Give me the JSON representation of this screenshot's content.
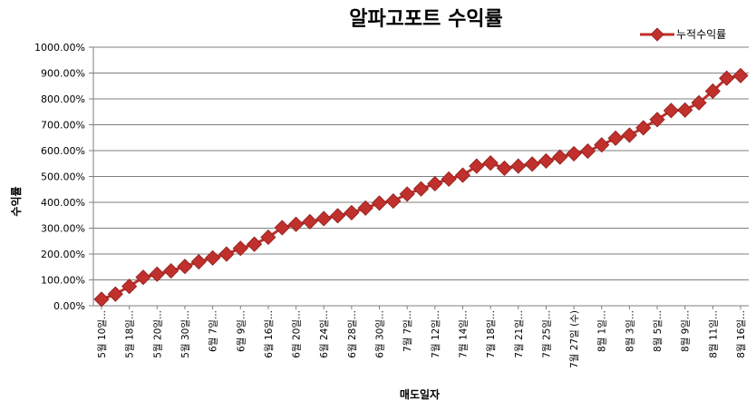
{
  "chart_data": {
    "type": "line",
    "title": "알파고포트 수익률",
    "xlabel": "매도일자",
    "ylabel": "수익률",
    "ylim": [
      0,
      1000
    ],
    "y_ticks": [
      "0.00%",
      "100.00%",
      "200.00%",
      "300.00%",
      "400.00%",
      "500.00%",
      "600.00%",
      "700.00%",
      "800.00%",
      "900.00%",
      "1000.00%"
    ],
    "grid": true,
    "legend_position": "top-right",
    "series": [
      {
        "name": "누적수익률",
        "color": "#c0302c",
        "marker": "diamond",
        "values": [
          25,
          45,
          75,
          110,
          122,
          135,
          152,
          170,
          185,
          200,
          222,
          238,
          265,
          302,
          315,
          325,
          337,
          348,
          360,
          378,
          397,
          405,
          432,
          452,
          472,
          490,
          505,
          540,
          552,
          532,
          540,
          548,
          560,
          575,
          588,
          598,
          622,
          648,
          660,
          688,
          720,
          755,
          757,
          785,
          830,
          880,
          890
        ]
      }
    ],
    "x_tick_labels": [
      {
        "index": 0,
        "label": "5월 10일..."
      },
      {
        "index": 2,
        "label": "5월 18일..."
      },
      {
        "index": 4,
        "label": "5월 20일..."
      },
      {
        "index": 6,
        "label": "5월 30일..."
      },
      {
        "index": 8,
        "label": "6월 7일..."
      },
      {
        "index": 10,
        "label": "6월 9일..."
      },
      {
        "index": 12,
        "label": "6월 16일..."
      },
      {
        "index": 14,
        "label": "6월 20일..."
      },
      {
        "index": 16,
        "label": "6월 24일..."
      },
      {
        "index": 18,
        "label": "6월 28일..."
      },
      {
        "index": 20,
        "label": "6월 30일..."
      },
      {
        "index": 22,
        "label": "7월 7일..."
      },
      {
        "index": 24,
        "label": "7월 12일..."
      },
      {
        "index": 26,
        "label": "7월 14일..."
      },
      {
        "index": 28,
        "label": "7월 18일..."
      },
      {
        "index": 30,
        "label": "7월 21일..."
      },
      {
        "index": 32,
        "label": "7월 25일..."
      },
      {
        "index": 34,
        "label": "7월 27일 (수)"
      },
      {
        "index": 36,
        "label": "8월 1일..."
      },
      {
        "index": 38,
        "label": "8월 3일..."
      },
      {
        "index": 40,
        "label": "8월 5일..."
      },
      {
        "index": 42,
        "label": "8월 9일..."
      },
      {
        "index": 44,
        "label": "8월 11일..."
      },
      {
        "index": 46,
        "label": "8월 16일..."
      }
    ]
  }
}
